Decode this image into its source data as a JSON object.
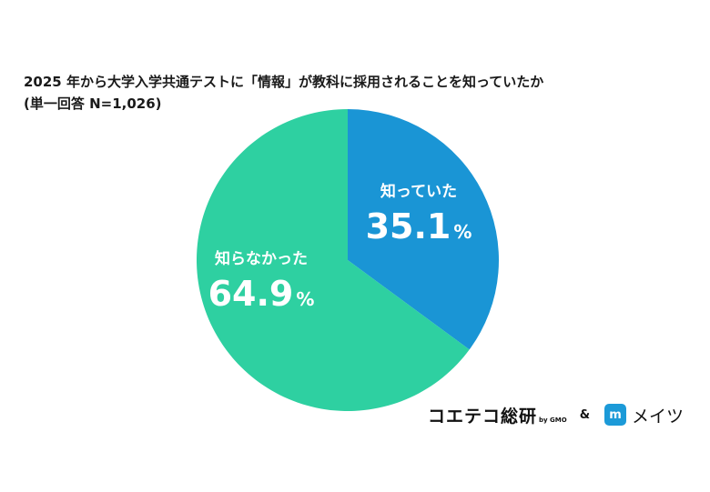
{
  "chart_data": {
    "type": "pie",
    "title": "2025 年から大学入学共通テストに「情報」が教科に採用されることを知っていたか",
    "subtitle": "(単一回答 N=1,026)",
    "slices": [
      {
        "label": "知っていた",
        "value": 35.1,
        "display": "35.1",
        "unit": "%",
        "color": "#1a95d5"
      },
      {
        "label": "知らなかった",
        "value": 64.9,
        "display": "64.9",
        "unit": "%",
        "color": "#2ed0a1"
      }
    ],
    "start_angle_deg": 0,
    "direction": "clockwise"
  },
  "footer": {
    "brand1": "コエテコ総研",
    "brand1_sub": "by GMO",
    "ampersand": "&",
    "brand2_logo": "m",
    "brand2": "メイツ"
  }
}
